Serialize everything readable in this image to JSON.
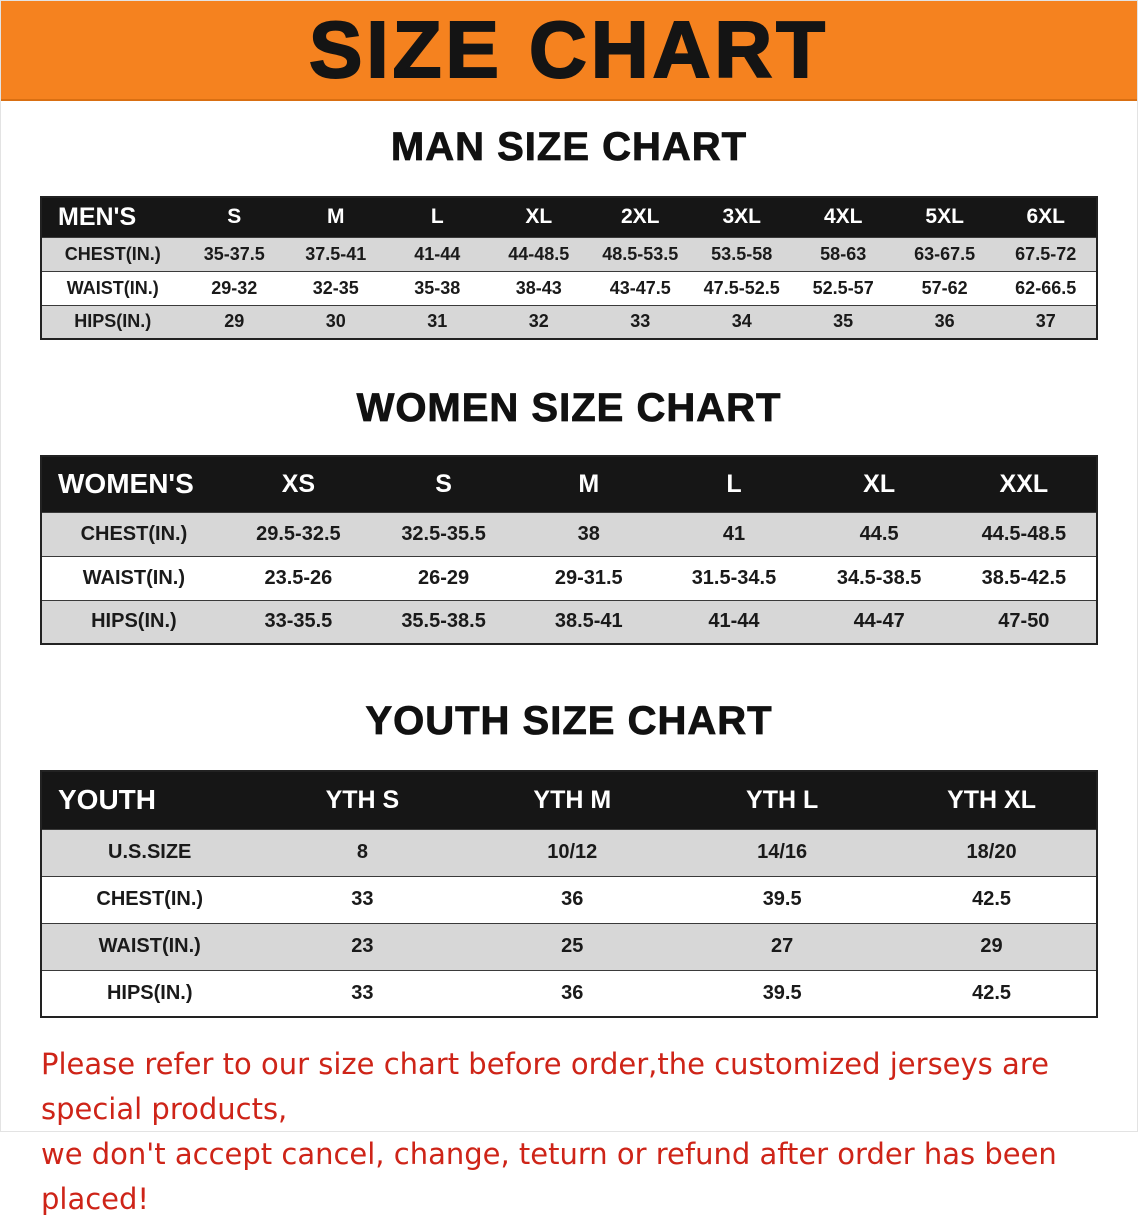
{
  "banner": {
    "title": "SIZE CHART",
    "background": "#F5821F"
  },
  "sections": {
    "men": {
      "heading": "MAN SIZE CHART",
      "table": {
        "header": [
          "MEN'S",
          "S",
          "M",
          "L",
          "XL",
          "2XL",
          "3XL",
          "4XL",
          "5XL",
          "6XL"
        ],
        "rows": [
          {
            "label": "CHEST(IN.)",
            "values": [
              "35-37.5",
              "37.5-41",
              "41-44",
              "44-48.5",
              "48.5-53.5",
              "53.5-58",
              "58-63",
              "63-67.5",
              "67.5-72"
            ]
          },
          {
            "label": "WAIST(IN.)",
            "values": [
              "29-32",
              "32-35",
              "35-38",
              "38-43",
              "43-47.5",
              "47.5-52.5",
              "52.5-57",
              "57-62",
              "62-66.5"
            ]
          },
          {
            "label": "HIPS(IN.)",
            "values": [
              "29",
              "30",
              "31",
              "32",
              "33",
              "34",
              "35",
              "36",
              "37"
            ]
          }
        ]
      }
    },
    "women": {
      "heading": "WOMEN SIZE CHART",
      "table": {
        "header": [
          "WOMEN'S",
          "XS",
          "S",
          "M",
          "L",
          "XL",
          "XXL"
        ],
        "rows": [
          {
            "label": "CHEST(IN.)",
            "values": [
              "29.5-32.5",
              "32.5-35.5",
              "38",
              "41",
              "44.5",
              "44.5-48.5"
            ]
          },
          {
            "label": "WAIST(IN.)",
            "values": [
              "23.5-26",
              "26-29",
              "29-31.5",
              "31.5-34.5",
              "34.5-38.5",
              "38.5-42.5"
            ]
          },
          {
            "label": "HIPS(IN.)",
            "values": [
              "33-35.5",
              "35.5-38.5",
              "38.5-41",
              "41-44",
              "44-47",
              "47-50"
            ]
          }
        ]
      }
    },
    "youth": {
      "heading": "YOUTH SIZE CHART",
      "table": {
        "header": [
          "YOUTH",
          "YTH S",
          "YTH M",
          "YTH L",
          "YTH XL"
        ],
        "rows": [
          {
            "label": "U.S.SIZE",
            "values": [
              "8",
              "10/12",
              "14/16",
              "18/20"
            ]
          },
          {
            "label": "CHEST(IN.)",
            "values": [
              "33",
              "36",
              "39.5",
              "42.5"
            ]
          },
          {
            "label": "WAIST(IN.)",
            "values": [
              "23",
              "25",
              "27",
              "29"
            ]
          },
          {
            "label": "HIPS(IN.)",
            "values": [
              "33",
              "36",
              "39.5",
              "42.5"
            ]
          }
        ]
      }
    }
  },
  "notice": {
    "color": "#CE2418",
    "lines": [
      "Please refer to our size chart before order,the customized jerseys are special products,",
      "we don't accept cancel, change, teturn or refund after order has been placed!"
    ]
  }
}
